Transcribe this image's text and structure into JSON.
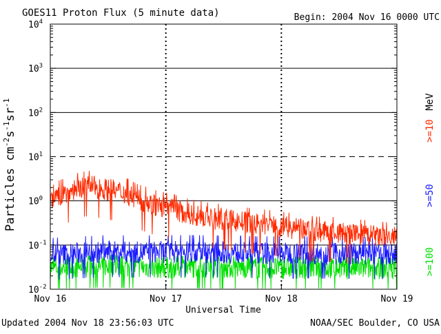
{
  "chart_data": {
    "type": "line",
    "title": "GOES11 Proton Flux (5 minute data)",
    "begin_label": "Begin: 2004 Nov 16 0000 UTC",
    "xlabel": "Universal Time",
    "ylabel": {
      "base": "Particles cm",
      "exp1": "-2",
      "mid1": "s",
      "exp2": "-1",
      "mid2": "sr",
      "exp3": "-1"
    },
    "x_ticks": [
      "Nov 16",
      "Nov 17",
      "Nov 18",
      "Nov 19"
    ],
    "xlim_days": [
      0,
      3
    ],
    "y_scale": "log",
    "ylim": [
      0.01,
      10000
    ],
    "y_ticks": [
      {
        "base": "10",
        "exp": "4",
        "value": 10000
      },
      {
        "base": "10",
        "exp": "3",
        "value": 1000
      },
      {
        "base": "10",
        "exp": "2",
        "value": 100
      },
      {
        "base": "10",
        "exp": "1",
        "value": 10
      },
      {
        "base": "10",
        "exp": "0",
        "value": 1
      },
      {
        "base": "10",
        "exp": "-1",
        "value": 0.1
      },
      {
        "base": "10",
        "exp": "-2",
        "value": 0.01
      }
    ],
    "threshold_lines": [
      {
        "value": 1000,
        "style": "solid"
      },
      {
        "value": 100,
        "style": "solid"
      },
      {
        "value": 10,
        "style": "dashed"
      },
      {
        "value": 1,
        "style": "solid"
      },
      {
        "value": 0.1,
        "style": "solid"
      }
    ],
    "series": [
      {
        "name": ">=10 MeV",
        "color": "#ff2a00",
        "x_days": [
          0.0,
          0.05,
          0.1,
          0.15,
          0.2,
          0.25,
          0.3,
          0.35,
          0.4,
          0.45,
          0.5,
          0.55,
          0.6,
          0.65,
          0.7,
          0.75,
          0.8,
          0.85,
          0.9,
          0.95,
          1.0,
          1.1,
          1.2,
          1.3,
          1.4,
          1.5,
          1.6,
          1.7,
          1.8,
          1.9,
          2.0,
          2.1,
          2.2,
          2.3,
          2.4,
          2.5,
          2.6,
          2.7,
          2.8,
          2.9,
          3.0
        ],
        "values": [
          0.9,
          1.2,
          1.4,
          1.5,
          1.8,
          2.0,
          2.1,
          2.2,
          2.0,
          1.9,
          1.8,
          1.7,
          1.6,
          1.5,
          1.3,
          1.1,
          1.0,
          0.9,
          0.8,
          0.75,
          0.7,
          0.6,
          0.5,
          0.45,
          0.4,
          0.38,
          0.35,
          0.32,
          0.3,
          0.28,
          0.26,
          0.24,
          0.22,
          0.2,
          0.2,
          0.19,
          0.18,
          0.17,
          0.16,
          0.15,
          0.15
        ]
      },
      {
        "name": ">=50 MeV",
        "color": "#1a1aff",
        "x_days": [
          0.0,
          0.25,
          0.5,
          0.75,
          1.0,
          1.25,
          1.5,
          1.75,
          2.0,
          2.25,
          2.5,
          2.75,
          3.0
        ],
        "values": [
          0.06,
          0.065,
          0.07,
          0.068,
          0.07,
          0.07,
          0.068,
          0.066,
          0.065,
          0.065,
          0.064,
          0.063,
          0.062
        ]
      },
      {
        "name": ">=100 MeV",
        "color": "#00e000",
        "x_days": [
          0.0,
          0.25,
          0.5,
          0.75,
          1.0,
          1.25,
          1.5,
          1.75,
          2.0,
          2.25,
          2.5,
          2.75,
          3.0
        ],
        "values": [
          0.03,
          0.032,
          0.033,
          0.032,
          0.031,
          0.032,
          0.031,
          0.031,
          0.03,
          0.031,
          0.03,
          0.03,
          0.03
        ]
      }
    ],
    "legend": {
      "placement": "right",
      "entries": [
        {
          "text": ">=10",
          "color": "#ff2a00"
        },
        {
          "text": "MeV",
          "color": "#000000"
        },
        {
          "text": ">=50",
          "color": "#1a1aff"
        },
        {
          "text": ">=100",
          "color": "#00e000"
        }
      ]
    },
    "footer_left": "Updated 2004 Nov 18 23:56:03 UTC",
    "footer_right": "NOAA/SEC Boulder, CO USA"
  }
}
